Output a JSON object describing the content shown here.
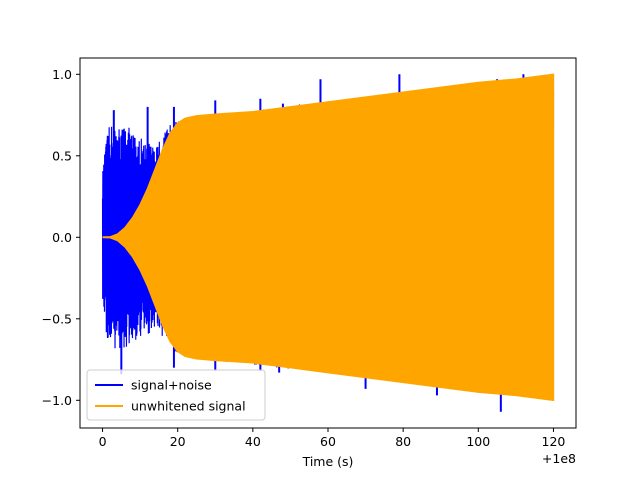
{
  "chart_data": {
    "type": "line",
    "title": "",
    "xlabel": "Time (s)",
    "ylabel": "",
    "x_offset_label": "+1e8",
    "xlim": [
      -6,
      126
    ],
    "ylim": [
      -1.17,
      1.1
    ],
    "xticks": [
      0,
      20,
      40,
      60,
      80,
      100,
      120
    ],
    "yticks": [
      -1.0,
      -0.5,
      0.0,
      0.5,
      1.0
    ],
    "xtick_labels": [
      "0",
      "20",
      "40",
      "60",
      "80",
      "100",
      "120"
    ],
    "ytick_labels": [
      "−1.0",
      "−0.5",
      "0.0",
      "0.5",
      "1.0"
    ],
    "grid": false,
    "legend_position": "lower-left",
    "series": [
      {
        "name": "signal+noise",
        "color": "#0000ff",
        "envelope": [
          [
            0,
            0.4
          ],
          [
            1,
            0.6
          ],
          [
            2,
            0.7
          ],
          [
            4,
            0.68
          ],
          [
            6,
            0.7
          ],
          [
            8,
            0.65
          ],
          [
            10,
            0.62
          ],
          [
            12,
            0.6
          ],
          [
            14,
            0.55
          ],
          [
            16,
            0.62
          ],
          [
            18,
            0.7
          ],
          [
            20,
            0.72
          ],
          [
            25,
            0.75
          ],
          [
            30,
            0.76
          ],
          [
            40,
            0.78
          ],
          [
            50,
            0.81
          ],
          [
            60,
            0.83
          ],
          [
            70,
            0.86
          ],
          [
            80,
            0.88
          ],
          [
            90,
            0.91
          ],
          [
            100,
            0.94
          ],
          [
            110,
            0.97
          ],
          [
            120,
            1.0
          ]
        ],
        "spikes_up": [
          [
            3,
            0.78
          ],
          [
            12,
            0.8
          ],
          [
            19,
            0.8
          ],
          [
            30,
            0.84
          ],
          [
            42,
            0.85
          ],
          [
            48,
            0.82
          ],
          [
            58,
            0.97
          ],
          [
            70,
            0.86
          ],
          [
            79,
            1.0
          ],
          [
            93,
            0.9
          ],
          [
            105,
            0.97
          ],
          [
            112,
            1.0
          ]
        ],
        "spikes_down": [
          [
            5,
            -0.84
          ],
          [
            19,
            -0.8
          ],
          [
            30,
            -0.82
          ],
          [
            42,
            -0.82
          ],
          [
            47,
            -0.83
          ],
          [
            57,
            -0.8
          ],
          [
            66,
            -0.85
          ],
          [
            70,
            -0.93
          ],
          [
            80,
            -0.88
          ],
          [
            89,
            -0.97
          ],
          [
            106,
            -1.07
          ],
          [
            112,
            -0.98
          ],
          [
            119,
            -1.0
          ]
        ]
      },
      {
        "name": "unwhitened signal",
        "color": "#ffa500",
        "envelope": [
          [
            0,
            0.0
          ],
          [
            2,
            0.002
          ],
          [
            4,
            0.02
          ],
          [
            6,
            0.06
          ],
          [
            8,
            0.12
          ],
          [
            10,
            0.2
          ],
          [
            12,
            0.3
          ],
          [
            14,
            0.42
          ],
          [
            16,
            0.54
          ],
          [
            18,
            0.64
          ],
          [
            20,
            0.7
          ],
          [
            22,
            0.73
          ],
          [
            25,
            0.745
          ],
          [
            30,
            0.755
          ],
          [
            40,
            0.77
          ],
          [
            50,
            0.8
          ],
          [
            60,
            0.83
          ],
          [
            70,
            0.86
          ],
          [
            80,
            0.89
          ],
          [
            90,
            0.92
          ],
          [
            100,
            0.95
          ],
          [
            110,
            0.97
          ],
          [
            120,
            1.0
          ]
        ]
      }
    ]
  }
}
